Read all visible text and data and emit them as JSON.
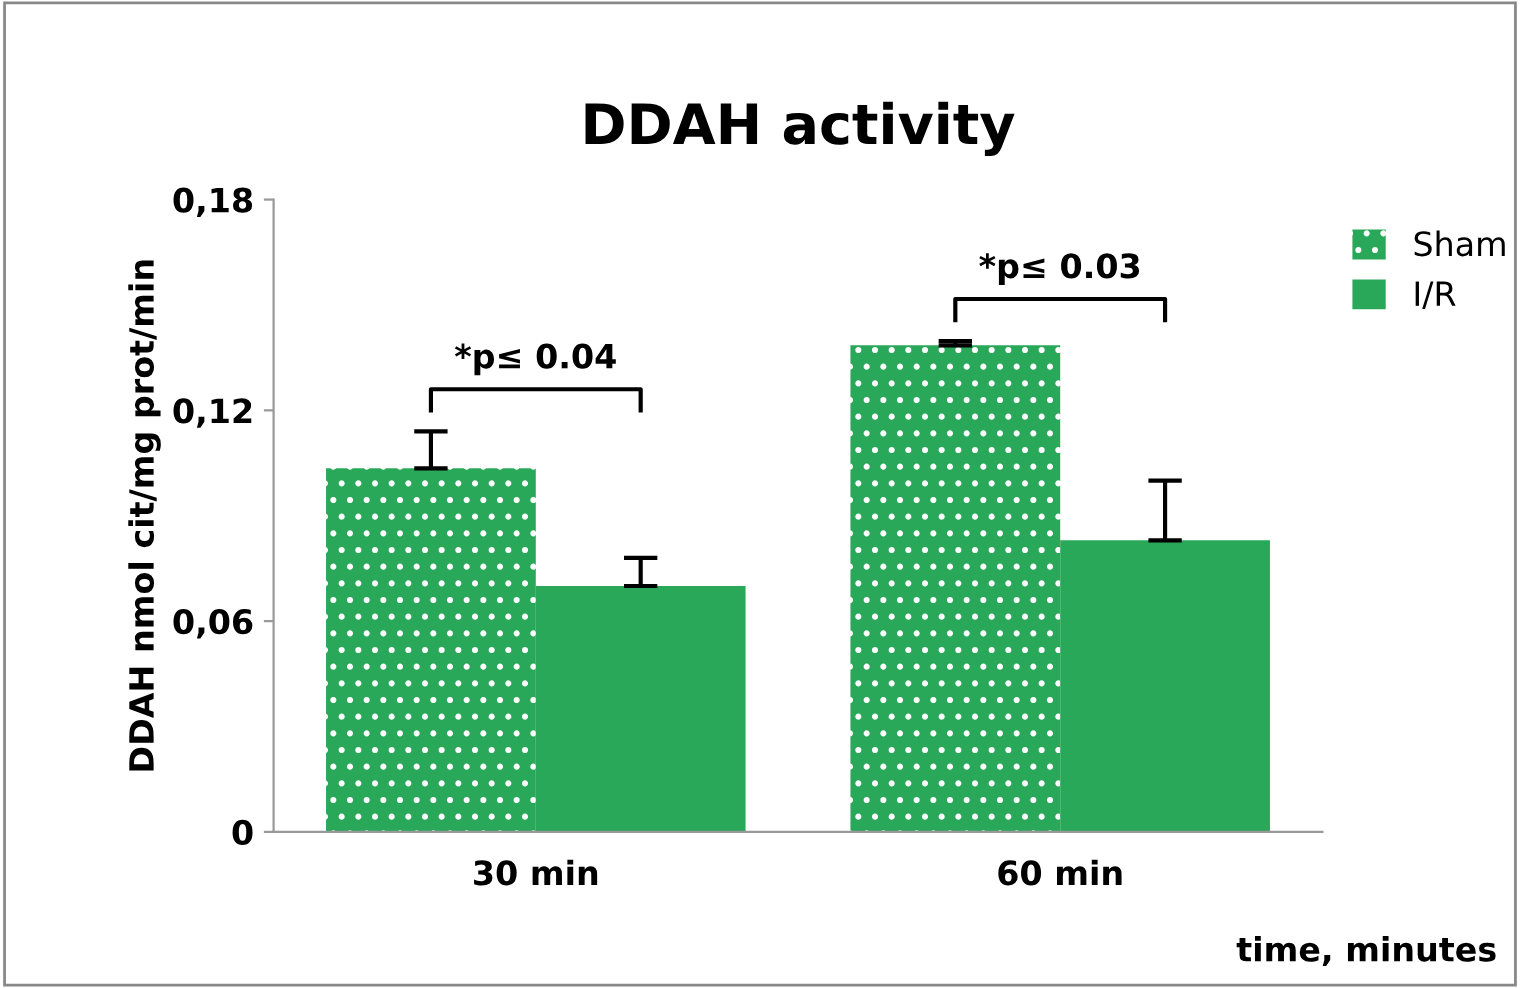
{
  "chart_data": {
    "type": "bar",
    "title": "DDAH activity",
    "xlabel": "time, minutes",
    "ylabel": "DDAH nmol cit/mg prot/min",
    "categories": [
      "30 min",
      "60 min"
    ],
    "series": [
      {
        "name": "Sham",
        "color": "#2aa85a",
        "values": [
          0.1035,
          0.1385
        ],
        "errors": [
          [
            0.1035,
            0.114
          ],
          [
            0.1385,
            0.1397
          ]
        ]
      },
      {
        "name": "I/R",
        "color": "#2aa85a",
        "values": [
          0.07,
          0.083
        ],
        "errors": [
          [
            0.07,
            0.078
          ],
          [
            0.083,
            0.1
          ]
        ]
      }
    ],
    "ylim": [
      0,
      0.18
    ],
    "yticks": [
      {
        "value": 0,
        "label": "0"
      },
      {
        "value": 0.06,
        "label": "0,06"
      },
      {
        "value": 0.12,
        "label": "0,12"
      },
      {
        "value": 0.18,
        "label": "0,18"
      }
    ],
    "legend": "top right",
    "annotations": [
      "*p≤ 0.04",
      "*p≤ 0.03"
    ]
  }
}
